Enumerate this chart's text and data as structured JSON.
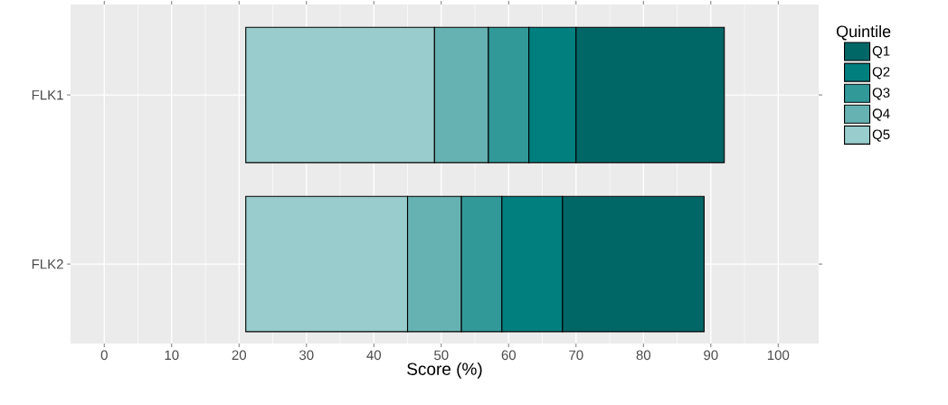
{
  "chart_data": {
    "type": "bar",
    "orientation": "horizontal",
    "categories": [
      "FLK1",
      "FLK2"
    ],
    "series": [
      {
        "name": "Q5",
        "color": "#99cccc",
        "base": [
          21,
          21
        ],
        "values": [
          28,
          24
        ]
      },
      {
        "name": "Q4",
        "color": "#66b2b2",
        "base": [
          49,
          45
        ],
        "values": [
          8,
          8
        ]
      },
      {
        "name": "Q3",
        "color": "#329999",
        "base": [
          57,
          53
        ],
        "values": [
          6,
          6
        ]
      },
      {
        "name": "Q2",
        "color": "#007f7f",
        "base": [
          63,
          59
        ],
        "values": [
          7,
          9
        ]
      },
      {
        "name": "Q1",
        "color": "#006666",
        "base": [
          70,
          68
        ],
        "values": [
          22,
          21
        ]
      }
    ],
    "xlabel": "Score (%)",
    "legend_title": "Quintile",
    "legend": "right",
    "xlim": [
      -5,
      106
    ],
    "xticks": [
      0,
      10,
      20,
      30,
      40,
      50,
      60,
      70,
      80,
      90,
      100
    ],
    "grid": true
  }
}
